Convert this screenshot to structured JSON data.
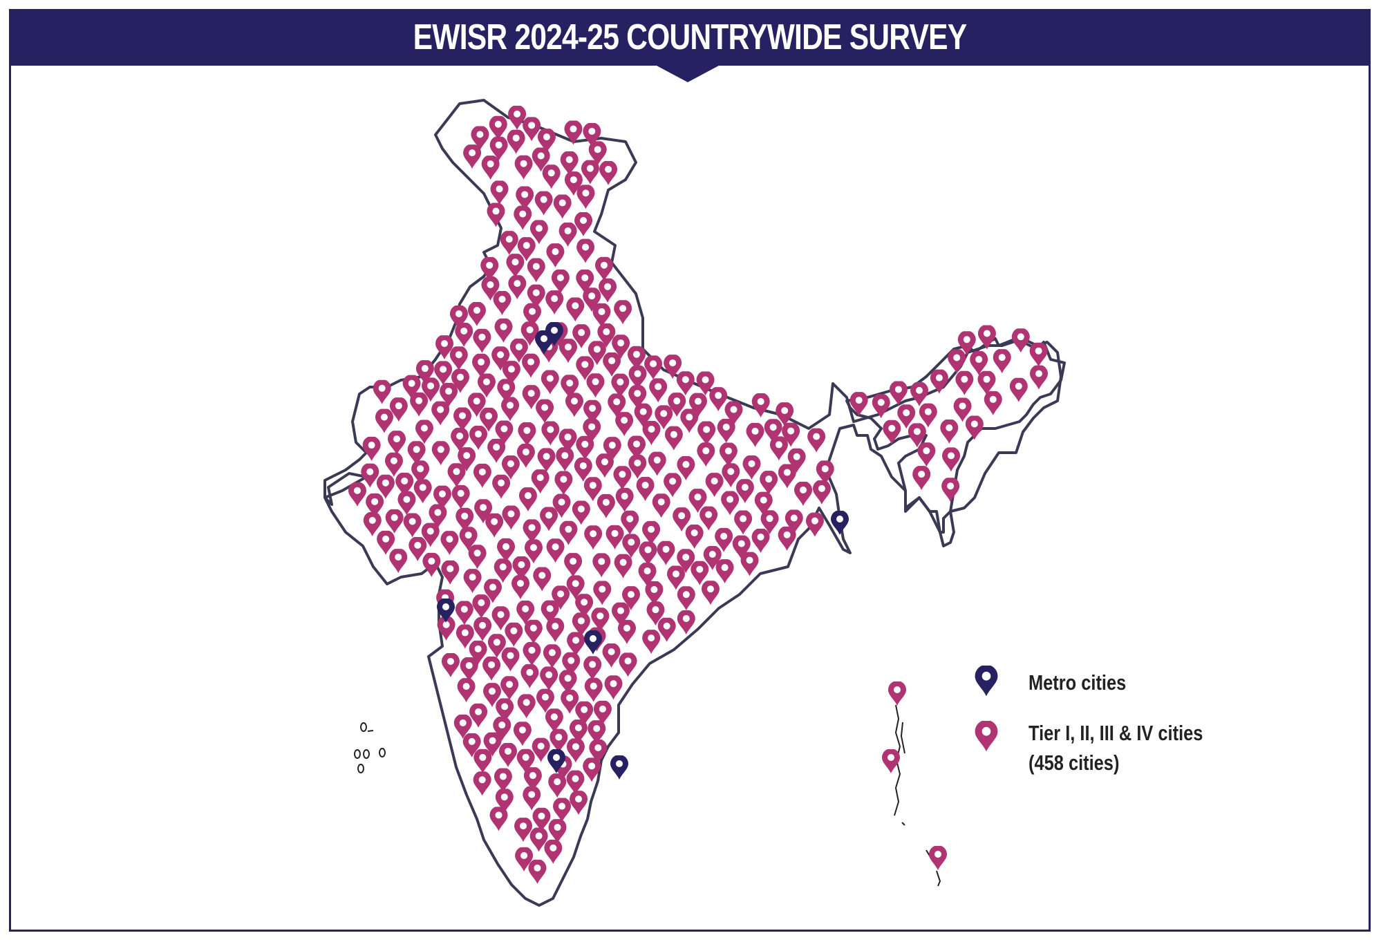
{
  "title": "EWISR 2024-25 COUNTRYWIDE SURVEY",
  "colors": {
    "navy": "#262262",
    "magenta": "#b03472",
    "outline": "#3a3a55"
  },
  "legend": {
    "metro_label": "Metro cities",
    "tier_label": "Tier I, II, III & IV cities",
    "tier_count": "(458 cities)",
    "metro_icon": "map-pin-navy-icon",
    "tier_icon": "map-pin-magenta-icon"
  }
}
